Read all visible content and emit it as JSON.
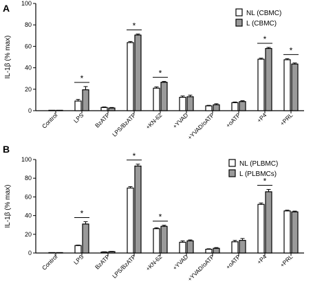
{
  "chart_data": [
    {
      "panel": "A",
      "type": "bar",
      "ylabel": "IL-1β (% max)",
      "ylim": [
        0,
        100
      ],
      "yticks": [
        0,
        20,
        40,
        60,
        80,
        100
      ],
      "categories": [
        "Control",
        "LPS",
        "BzATP",
        "LPS/BzATP",
        "+KN-62",
        "+YVAD",
        "+YVAD/oATP",
        "+oATP",
        "+P4",
        "+PRL"
      ],
      "series": [
        {
          "name": "NL (CBMC)",
          "fill": "#ffffff",
          "values": [
            0,
            9,
            3,
            63.5,
            21,
            12.5,
            4.5,
            7.5,
            48,
            47.5
          ],
          "errors": [
            0.3,
            1.5,
            0.5,
            1,
            1.2,
            1.2,
            0.5,
            0.6,
            1,
            1
          ]
        },
        {
          "name": "L (CBMC)",
          "fill": "#9a9a9a",
          "values": [
            0,
            19.5,
            2.5,
            70.5,
            26.5,
            13,
            5.5,
            8.5,
            58,
            43.5
          ],
          "errors": [
            0.3,
            3,
            0.5,
            1,
            0.8,
            1.5,
            1,
            0.8,
            1,
            1
          ]
        }
      ],
      "significance": [
        "LPS",
        "LPS/BzATP",
        "+KN-62",
        "+P4",
        "+PRL"
      ],
      "significance_symbol": "*"
    },
    {
      "panel": "B",
      "type": "bar",
      "ylabel": "IL-1β (% max)",
      "ylim": [
        0,
        100
      ],
      "yticks": [
        0,
        20,
        40,
        60,
        80,
        100
      ],
      "categories": [
        "Control",
        "LPS",
        "BzATP",
        "LPS/BzATP",
        "+KN-62",
        "+YVAD",
        "+YVAD/oATP",
        "+oATP",
        "+P4",
        "+PRL"
      ],
      "series": [
        {
          "name": "NL (PLBMC)",
          "fill": "#ffffff",
          "values": [
            0,
            8,
            1,
            69.5,
            26,
            11.5,
            4,
            12,
            52,
            45
          ],
          "errors": [
            0.3,
            0.5,
            0.3,
            1.5,
            1,
            1.5,
            0.5,
            1.5,
            1.5,
            0.8
          ]
        },
        {
          "name": "L (PLBMCs)",
          "fill": "#9a9a9a",
          "values": [
            0,
            31,
            1.5,
            93,
            28.5,
            13,
            5,
            13.5,
            65.5,
            44
          ],
          "errors": [
            0.3,
            2.5,
            0.3,
            2,
            1.2,
            1,
            0.8,
            2,
            2.5,
            0.8
          ]
        }
      ],
      "significance": [
        "LPS",
        "LPS/BzATP",
        "+KN-62",
        "+P4"
      ],
      "significance_symbol": "*"
    }
  ]
}
